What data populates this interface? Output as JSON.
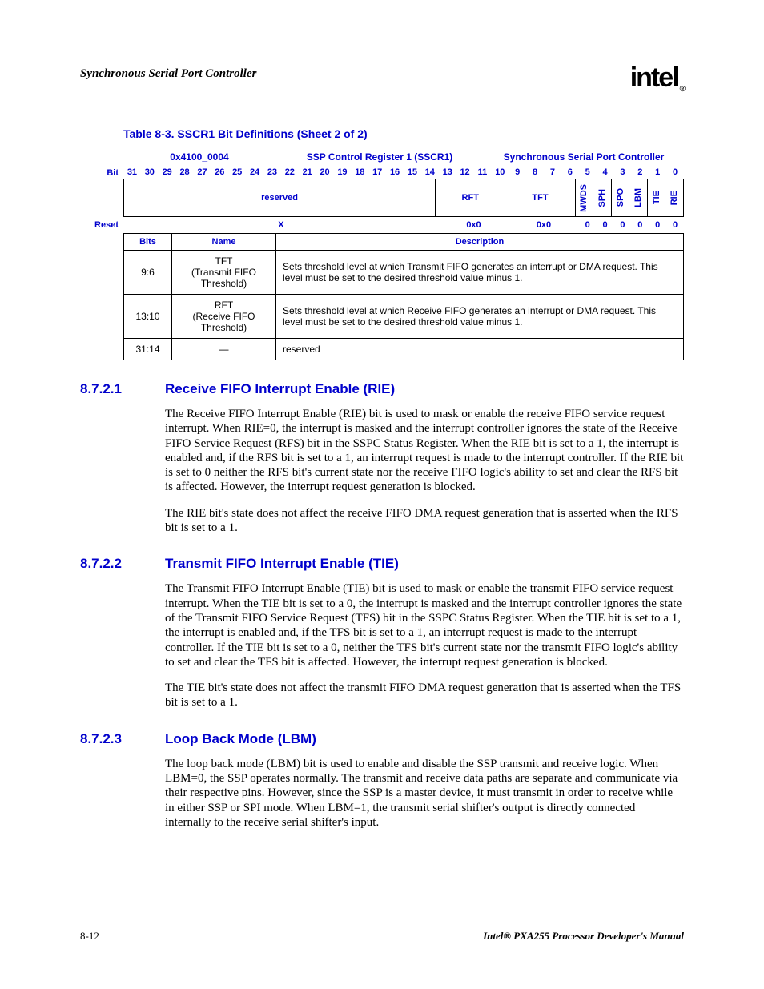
{
  "header": {
    "title": "Synchronous Serial Port Controller",
    "logo_text": "intel",
    "logo_r": "®"
  },
  "table": {
    "caption": "Table 8-3. SSCR1 Bit Definitions (Sheet 2 of 2)",
    "address": "0x4100_0004",
    "register": "SSP Control Register 1 (SSCR1)",
    "controller": "Synchronous Serial Port Controller",
    "bit_label": "Bit",
    "reset_label": "Reset",
    "bit_numbers": [
      "31",
      "30",
      "29",
      "28",
      "27",
      "26",
      "25",
      "24",
      "23",
      "22",
      "21",
      "20",
      "19",
      "18",
      "17",
      "16",
      "15",
      "14",
      "13",
      "12",
      "11",
      "10",
      "9",
      "8",
      "7",
      "6",
      "5",
      "4",
      "3",
      "2",
      "1",
      "0"
    ],
    "fields": [
      {
        "label": "reserved",
        "span": 18,
        "vert": false,
        "reset": "X"
      },
      {
        "label": "RFT",
        "span": 4,
        "vert": false,
        "reset": "0x0"
      },
      {
        "label": "TFT",
        "span": 4,
        "vert": false,
        "reset": "0x0"
      },
      {
        "label": "MWDS",
        "span": 1,
        "vert": true,
        "reset": "0"
      },
      {
        "label": "SPH",
        "span": 1,
        "vert": true,
        "reset": "0"
      },
      {
        "label": "SPO",
        "span": 1,
        "vert": true,
        "reset": "0"
      },
      {
        "label": "LBM",
        "span": 1,
        "vert": true,
        "reset": "0"
      },
      {
        "label": "TIE",
        "span": 1,
        "vert": true,
        "reset": "0"
      },
      {
        "label": "RIE",
        "span": 1,
        "vert": true,
        "reset": "0"
      }
    ],
    "headers": {
      "bits": "Bits",
      "name": "Name",
      "desc": "Description"
    },
    "rows": [
      {
        "bits": "9:6",
        "name_line1": "TFT",
        "name_line2": "(Transmit FIFO Threshold)",
        "desc": "Sets threshold level at which Transmit FIFO generates an interrupt or DMA request. This level must be set to the desired threshold value minus 1."
      },
      {
        "bits": "13:10",
        "name_line1": "RFT",
        "name_line2": "(Receive FIFO Threshold)",
        "desc": "Sets threshold level at which Receive FIFO generates an interrupt or DMA request. This level must be set to the desired threshold value minus 1."
      },
      {
        "bits": "31:14",
        "name_line1": "—",
        "name_line2": "",
        "desc": "reserved"
      }
    ]
  },
  "sections": [
    {
      "num": "8.7.2.1",
      "title": "Receive FIFO Interrupt Enable (RIE)",
      "paras": [
        "The Receive FIFO Interrupt Enable (RIE) bit is used to mask or enable the receive FIFO service request interrupt. When RIE=0, the interrupt is masked and the interrupt controller ignores the state of the Receive FIFO Service Request (RFS) bit in the SSPC Status Register. When the RIE bit is set to a 1, the interrupt is enabled and, if the RFS bit is set to a 1, an interrupt request is made to the interrupt controller. If the RIE bit is set to 0 neither the RFS bit's current state nor the receive FIFO logic's ability to set and clear the RFS bit is affected. However, the interrupt request generation is blocked.",
        "The RIE bit's state does not affect the receive FIFO DMA request generation that is asserted when the RFS bit is set to a 1."
      ]
    },
    {
      "num": "8.7.2.2",
      "title": "Transmit FIFO Interrupt Enable (TIE)",
      "paras": [
        "The Transmit FIFO Interrupt Enable (TIE) bit is used to mask or enable the transmit FIFO service request interrupt. When the TIE bit is set to a 0, the interrupt is masked and the interrupt controller ignores the state of the Transmit FIFO Service Request (TFS) bit in the SSPC Status Register. When the TIE bit is set to a 1, the interrupt is enabled and, if the TFS bit is set to a 1, an interrupt request is made to the interrupt controller. If the TIE bit is set to a 0, neither the TFS bit's current state nor the transmit FIFO logic's ability to set and clear the TFS bit is affected. However, the interrupt request generation is blocked.",
        "The TIE bit's state does not affect the transmit FIFO DMA request generation that is asserted when the TFS bit is set to a 1."
      ]
    },
    {
      "num": "8.7.2.3",
      "title": "Loop Back Mode (LBM)",
      "paras": [
        "The loop back mode (LBM) bit is used to enable and disable the SSP transmit and receive logic. When LBM=0, the SSP operates normally. The transmit and receive data paths are separate and communicate via their respective pins. However, since the SSP is a master device, it must transmit in order to receive while in either SSP or SPI mode. When LBM=1, the transmit serial shifter's output is directly connected internally to the receive serial shifter's input."
      ]
    }
  ],
  "footer": {
    "page": "8-12",
    "manual": "Intel® PXA255 Processor Developer's Manual"
  }
}
